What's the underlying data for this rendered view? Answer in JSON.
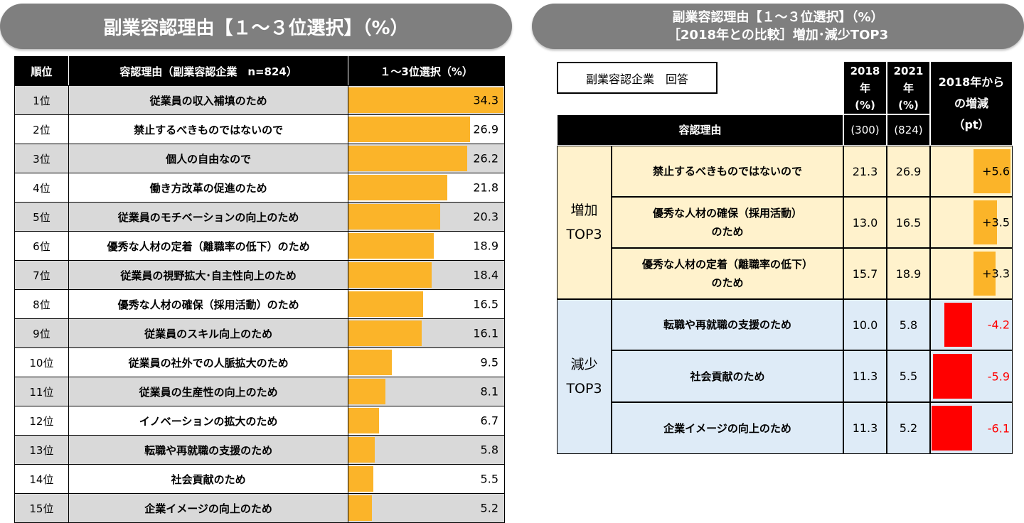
{
  "left": {
    "title": "副業容認理由【１～３位選択】（%）",
    "headers": [
      "順位",
      "容認理由（副業容認企業　n=824）",
      "１～3位選択（%）"
    ]
  },
  "right": {
    "title_line1": "副業容認理由【１～３位選択】（%）",
    "title_line2": "［2018年との比較］増加･減少TOP3",
    "label_box": "副業容認企業　回答",
    "col_2018": "2018\n年\n(%)",
    "col_2021": "2021\n年\n(%)",
    "col_diff": "2018年から\nの増減\n（pt）",
    "col_reason": "容認理由",
    "n_2018": "(300)",
    "n_2021": "(824)",
    "group_increase": "増加\nTOP3",
    "group_decrease": "減少\nTOP3"
  },
  "colors": {
    "bar": "#fbb429",
    "negative": "#ff0000",
    "increase_bg": "#fff2cc",
    "decrease_bg": "#deebf7"
  },
  "chart_data": [
    {
      "type": "bar",
      "title": "副業容認理由【１～３位選択】（%）",
      "ylabel": "１～3位選択（%）",
      "orientation": "horizontal",
      "xlim": [
        0,
        34.3
      ],
      "ranks": [
        "1位",
        "2位",
        "3位",
        "4位",
        "5位",
        "6位",
        "7位",
        "8位",
        "9位",
        "10位",
        "11位",
        "12位",
        "13位",
        "14位",
        "15位"
      ],
      "categories": [
        "従業員の収入補填のため",
        "禁止するべきものではないので",
        "個人の自由なので",
        "働き方改革の促進のため",
        "従業員のモチベーションの向上のため",
        "優秀な人材の定着（離職率の低下）のため",
        "従業員の視野拡大･自主性向上のため",
        "優秀な人材の確保（採用活動）のため",
        "従業員のスキル向上のため",
        "従業員の社外での人脈拡大のため",
        "従業員の生産性の向上のため",
        "イノベーションの拡大のため",
        "転職や再就職の支援のため",
        "社会貢献のため",
        "企業イメージの向上のため"
      ],
      "values": [
        34.3,
        26.9,
        26.2,
        21.8,
        20.3,
        18.9,
        18.4,
        16.5,
        16.1,
        9.5,
        8.1,
        6.7,
        5.8,
        5.5,
        5.2
      ],
      "labels": [
        "34.3",
        "26.9",
        "26.2",
        "21.8",
        "20.3",
        "18.9",
        "18.4",
        "16.5",
        "16.1",
        "9.5",
        "8.1",
        "6.7",
        "5.8",
        "5.5",
        "5.2"
      ]
    },
    {
      "type": "table",
      "title": "［2018年との比較］増加･減少TOP3",
      "rows": [
        {
          "group": "increase",
          "reason": "禁止するべきものではないので",
          "v2018": "21.3",
          "v2021": "26.9",
          "diff": 5.6,
          "diff_label": "+5.6"
        },
        {
          "group": "increase",
          "reason": "優秀な人材の確保（採用活動）\nのため",
          "v2018": "13.0",
          "v2021": "16.5",
          "diff": 3.5,
          "diff_label": "+3.5"
        },
        {
          "group": "increase",
          "reason": "優秀な人材の定着（離職率の低下）\nのため",
          "v2018": "15.7",
          "v2021": "18.9",
          "diff": 3.3,
          "diff_label": "+3.3"
        },
        {
          "group": "decrease",
          "reason": "転職や再就職の支援のため",
          "v2018": "10.0",
          "v2021": "5.8",
          "diff": -4.2,
          "diff_label": "-4.2"
        },
        {
          "group": "decrease",
          "reason": "社会貢献のため",
          "v2018": "11.3",
          "v2021": "5.5",
          "diff": -5.9,
          "diff_label": "-5.9"
        },
        {
          "group": "decrease",
          "reason": "企業イメージの向上のため",
          "v2018": "11.3",
          "v2021": "5.2",
          "diff": -6.1,
          "diff_label": "-6.1"
        }
      ]
    }
  ]
}
